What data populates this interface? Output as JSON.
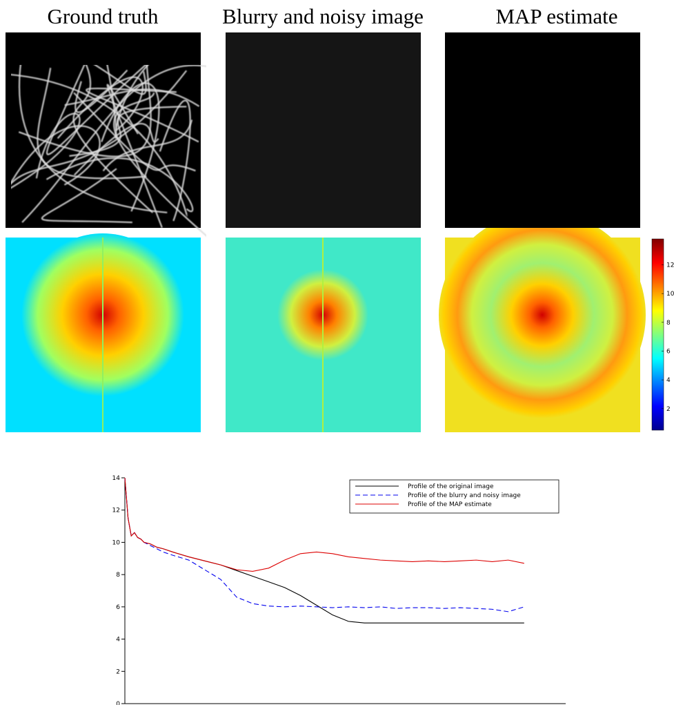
{
  "panels": {
    "titles": [
      "Ground truth",
      "Blurry and noisy image",
      "MAP estimate"
    ]
  },
  "colorbar": {
    "lim": [
      0.5,
      13.8
    ],
    "ticks": [
      2,
      4,
      6,
      8,
      10,
      12
    ]
  },
  "chart_data": {
    "type": "line",
    "x": [
      0,
      1,
      2,
      3,
      4,
      5,
      6,
      8,
      10,
      12,
      15,
      20,
      25,
      30,
      35,
      40,
      45,
      50,
      55,
      60,
      65,
      70,
      75,
      80,
      85,
      90,
      95,
      100,
      105,
      110,
      115,
      120,
      125
    ],
    "xlim": [
      0,
      138
    ],
    "ylim": [
      0,
      14
    ],
    "yticks": [
      0,
      2,
      4,
      6,
      8,
      10,
      12,
      14
    ],
    "legend": "top-right",
    "series": [
      {
        "name": "Profile of the original image",
        "color": "#000000",
        "style": "solid",
        "values": [
          14,
          11.5,
          10.4,
          10.6,
          10.3,
          10.2,
          10.0,
          9.9,
          9.7,
          9.6,
          9.4,
          9.1,
          8.85,
          8.6,
          8.25,
          7.9,
          7.55,
          7.2,
          6.7,
          6.1,
          5.5,
          5.1,
          5.0,
          5.0,
          5.0,
          5.0,
          5.0,
          5.0,
          5.0,
          5.0,
          5.0,
          5.0,
          5.0
        ]
      },
      {
        "name": "Profile of the blurry and noisy image",
        "color": "#0000ee",
        "style": "dashed",
        "values": [
          14,
          11.5,
          10.4,
          10.6,
          10.3,
          10.2,
          10.0,
          9.8,
          9.6,
          9.4,
          9.2,
          8.9,
          8.3,
          7.7,
          6.6,
          6.2,
          6.05,
          6.0,
          6.05,
          6.0,
          5.95,
          6.0,
          5.95,
          6.0,
          5.9,
          5.95,
          5.95,
          5.9,
          5.95,
          5.9,
          5.85,
          5.7,
          6.0
        ]
      },
      {
        "name": "Profile of the MAP estimate",
        "color": "#dd0000",
        "style": "solid",
        "values": [
          14,
          11.5,
          10.4,
          10.6,
          10.3,
          10.2,
          10.0,
          9.9,
          9.7,
          9.6,
          9.4,
          9.1,
          8.85,
          8.6,
          8.3,
          8.2,
          8.4,
          8.9,
          9.3,
          9.4,
          9.3,
          9.1,
          9.0,
          8.9,
          8.85,
          8.8,
          8.85,
          8.8,
          8.85,
          8.9,
          8.8,
          8.9,
          8.7
        ]
      }
    ]
  }
}
